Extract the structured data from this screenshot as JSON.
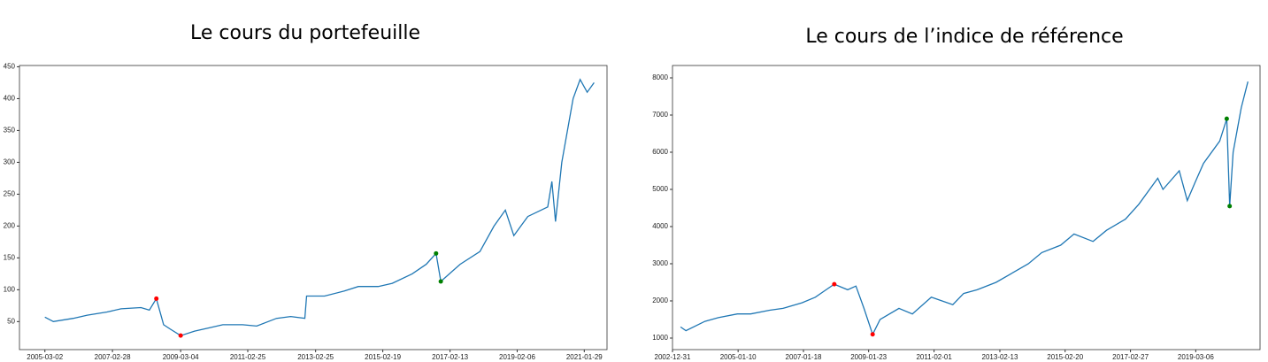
{
  "chart_data": [
    {
      "type": "line",
      "title": "Le cours du portefeuille",
      "color": "#1f77b4",
      "x": [
        "2005-03-02",
        "2005-06-01",
        "2006-01-01",
        "2006-06-01",
        "2007-01-01",
        "2007-06-01",
        "2008-01-01",
        "2008-04-01",
        "2008-06-15",
        "2008-09-01",
        "2008-11-15",
        "2009-03-04",
        "2009-08-01",
        "2010-01-01",
        "2010-06-01",
        "2011-01-01",
        "2011-06-01",
        "2012-01-01",
        "2012-06-01",
        "2012-11-01",
        "2012-11-20",
        "2013-06-01",
        "2014-01-01",
        "2014-06-01",
        "2015-01-01",
        "2015-06-01",
        "2016-01-01",
        "2016-06-01",
        "2016-09-15",
        "2016-11-05",
        "2017-06-01",
        "2018-01-01",
        "2018-06-01",
        "2018-10-01",
        "2019-01-01",
        "2019-06-01",
        "2020-01-01",
        "2020-02-15",
        "2020-03-25",
        "2020-06-01",
        "2020-10-01",
        "2020-12-15",
        "2021-03-01",
        "2021-05-15"
      ],
      "values": [
        57,
        50,
        55,
        60,
        65,
        70,
        72,
        68,
        86,
        45,
        38,
        28,
        35,
        40,
        45,
        45,
        43,
        55,
        58,
        55,
        90,
        90,
        98,
        105,
        105,
        110,
        125,
        140,
        157,
        113,
        140,
        160,
        200,
        225,
        185,
        215,
        230,
        270,
        207,
        300,
        400,
        430,
        410,
        425
      ],
      "markers": [
        {
          "x": "2008-06-15",
          "value": 86,
          "color": "#ff0000"
        },
        {
          "x": "2009-03-04",
          "value": 28,
          "color": "#ff0000"
        },
        {
          "x": "2016-09-15",
          "value": 157,
          "color": "#008000"
        },
        {
          "x": "2016-11-05",
          "value": 113,
          "color": "#008000"
        }
      ],
      "xlim": [
        "2004-06-01",
        "2021-10-01"
      ],
      "ylim": [
        6,
        452
      ],
      "xticks": [
        "2005-03-02",
        "2007-02-28",
        "2009-03-04",
        "2011-02-25",
        "2013-02-25",
        "2015-02-19",
        "2017-02-13",
        "2019-02-06",
        "2021-01-29"
      ],
      "yticks": [
        50,
        100,
        150,
        200,
        250,
        300,
        350,
        400,
        450
      ]
    },
    {
      "type": "line",
      "title": "Le cours de l’indice de référence",
      "color": "#1f77b4",
      "x": [
        "2003-04-01",
        "2003-06-01",
        "2004-01-01",
        "2004-06-01",
        "2005-01-01",
        "2005-06-01",
        "2006-01-01",
        "2006-06-01",
        "2007-01-01",
        "2007-06-01",
        "2007-10-01",
        "2008-01-01",
        "2008-06-01",
        "2008-09-01",
        "2008-12-01",
        "2009-03-09",
        "2009-06-01",
        "2010-01-01",
        "2010-06-01",
        "2011-01-01",
        "2011-09-01",
        "2012-01-01",
        "2012-06-01",
        "2013-01-01",
        "2014-01-01",
        "2014-06-01",
        "2015-01-01",
        "2015-06-01",
        "2016-01-01",
        "2016-06-01",
        "2017-01-01",
        "2017-06-01",
        "2018-01-01",
        "2018-03-01",
        "2018-09-01",
        "2018-12-01",
        "2019-03-01",
        "2019-06-01",
        "2019-12-01",
        "2020-02-19",
        "2020-03-23",
        "2020-05-01",
        "2020-08-01",
        "2020-10-15"
      ],
      "values": [
        1300,
        1200,
        1450,
        1550,
        1650,
        1650,
        1750,
        1800,
        1950,
        2100,
        2300,
        2450,
        2300,
        2400,
        1800,
        1100,
        1500,
        1800,
        1650,
        2100,
        1900,
        2200,
        2300,
        2500,
        3000,
        3300,
        3500,
        3800,
        3600,
        3900,
        4200,
        4600,
        5300,
        5000,
        5500,
        4700,
        5200,
        5700,
        6300,
        6900,
        4550,
        6000,
        7200,
        7900
      ],
      "markers": [
        {
          "x": "2008-01-01",
          "value": 2450,
          "color": "#ff0000"
        },
        {
          "x": "2009-03-09",
          "value": 1100,
          "color": "#ff0000"
        },
        {
          "x": "2020-02-19",
          "value": 6900,
          "color": "#008000"
        },
        {
          "x": "2020-03-23",
          "value": 4550,
          "color": "#008000"
        }
      ],
      "xlim": [
        "2002-12-31",
        "2021-03-01"
      ],
      "ylim": [
        690,
        8333
      ],
      "xticks": [
        "2002-12-31",
        "2005-01-10",
        "2007-01-18",
        "2009-01-23",
        "2011-02-01",
        "2013-02-13",
        "2015-02-20",
        "2017-02-27",
        "2019-03-06"
      ],
      "yticks": [
        1000,
        2000,
        3000,
        4000,
        5000,
        6000,
        7000,
        8000
      ]
    }
  ]
}
